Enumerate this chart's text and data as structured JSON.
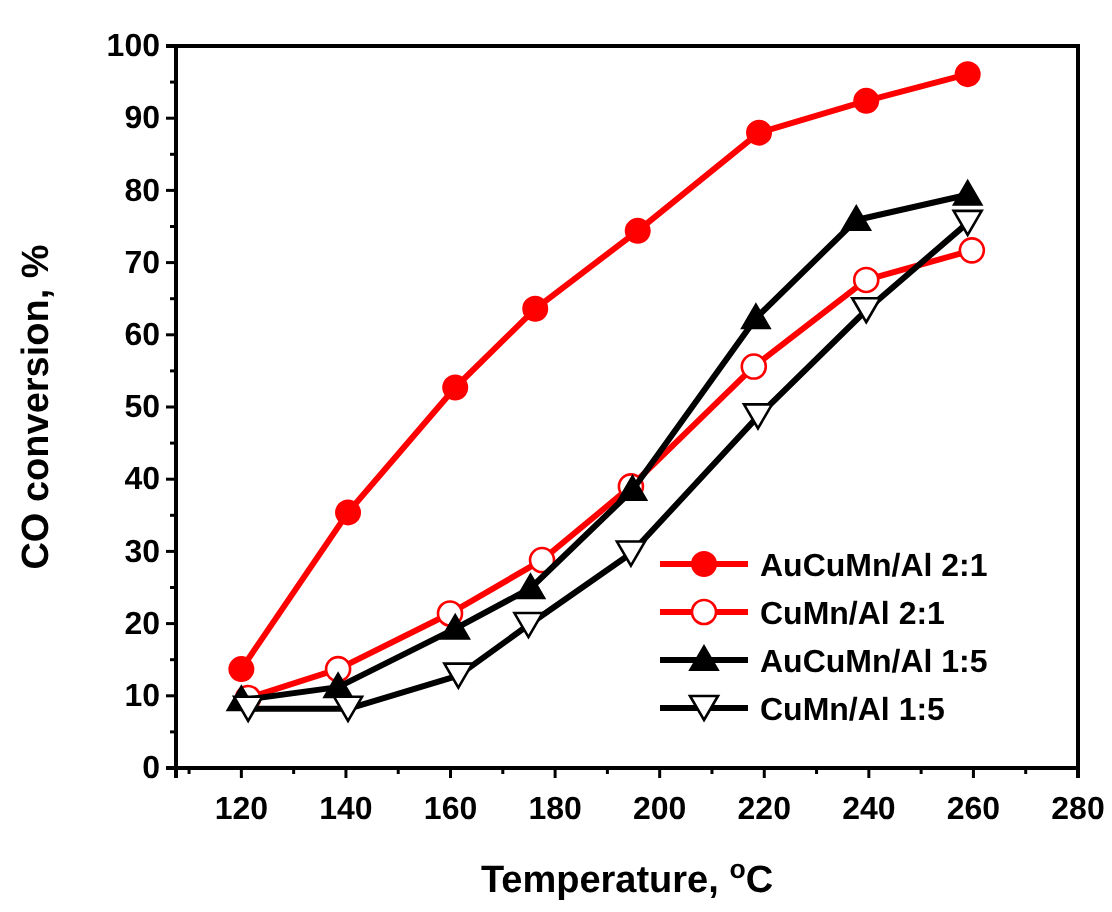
{
  "chart_data": {
    "type": "line",
    "xlabel": "Temperature, $^{o}$C",
    "ylabel": "CO conversion, %",
    "xlim": [
      107.5,
      280
    ],
    "xticks": [
      120,
      140,
      160,
      180,
      200,
      220,
      240,
      260,
      280
    ],
    "ylim": [
      0,
      100
    ],
    "yticks": [
      0,
      10,
      20,
      30,
      40,
      50,
      60,
      70,
      80,
      90,
      100
    ],
    "grid": false,
    "legend": "bottom right",
    "line_style": "solid",
    "series": [
      {
        "name": "AuCuMn/Al 2:1",
        "color": "#ff0000",
        "marker": "circle",
        "x": [
          120,
          140.4,
          160.9,
          176.2,
          195.8,
          219,
          239.5,
          258.9
        ],
        "values": [
          13.7,
          35.4,
          52.7,
          63.6,
          74.4,
          88,
          92.4,
          96.1
        ]
      },
      {
        "name": "CuMn/Al 2:1",
        "color": "#ff0000",
        "marker": "circle-open",
        "x": [
          121.3,
          138.5,
          159.9,
          177.5,
          194.5,
          218,
          239.5,
          259.7
        ],
        "values": [
          9.7,
          13.7,
          21.4,
          28.8,
          39,
          55.6,
          67.6,
          71.7
        ]
      },
      {
        "name": "AuCuMn/Al 1:5",
        "color": "#000000",
        "marker": "triangle",
        "x": [
          120,
          138.5,
          160.9,
          175.3,
          194.8,
          218.4,
          237.6,
          258.9
        ],
        "values": [
          9.4,
          11.2,
          19.3,
          24.9,
          38.5,
          62.3,
          75.9,
          79.4
        ]
      },
      {
        "name": "CuMn/Al 1:5",
        "color": "#000000",
        "marker": "triangle-down-open",
        "x": [
          121.3,
          140.4,
          161.5,
          174.9,
          194.5,
          218.8,
          239.5,
          258.9
        ],
        "values": [
          8.2,
          8.2,
          12.8,
          19.8,
          29.7,
          48.7,
          63.4,
          75.5
        ]
      }
    ]
  }
}
